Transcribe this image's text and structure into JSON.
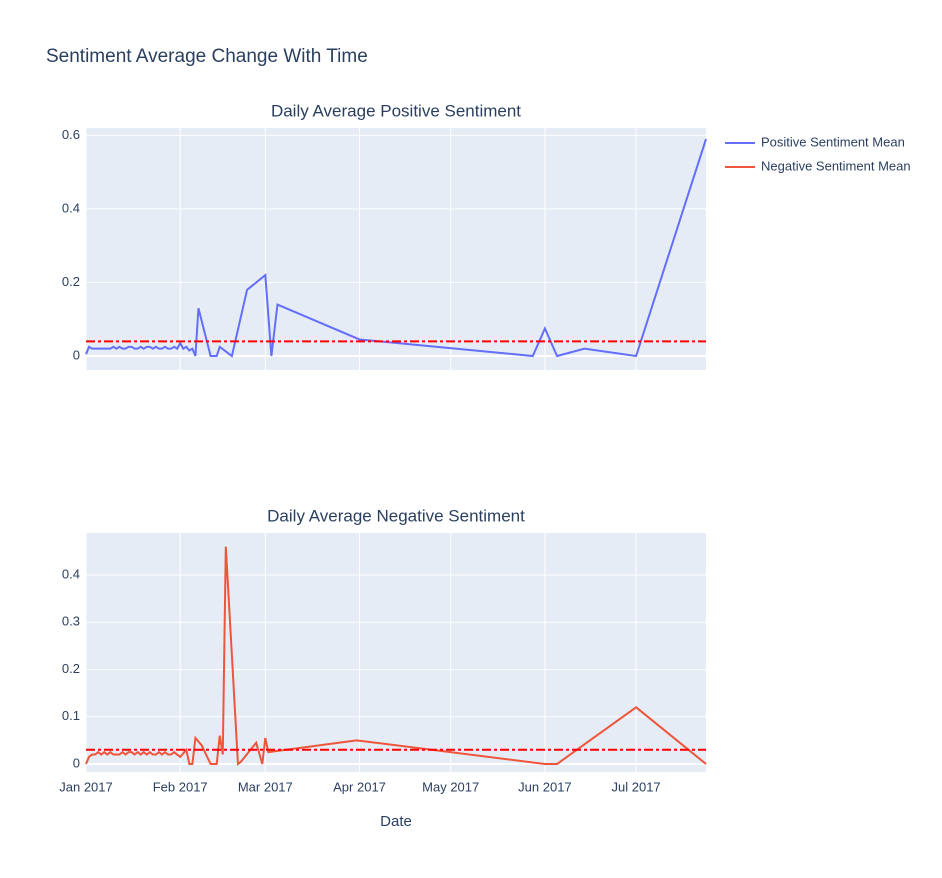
{
  "title": "Sentiment Average Change With Time",
  "chart_data": [
    {
      "type": "line",
      "title": "Daily Average Positive Sentiment",
      "x": [
        "2017-01-01",
        "2017-01-02",
        "2017-01-03",
        "2017-01-04",
        "2017-01-05",
        "2017-01-06",
        "2017-01-07",
        "2017-01-08",
        "2017-01-09",
        "2017-01-10",
        "2017-01-11",
        "2017-01-12",
        "2017-01-13",
        "2017-01-14",
        "2017-01-15",
        "2017-01-16",
        "2017-01-17",
        "2017-01-18",
        "2017-01-19",
        "2017-01-20",
        "2017-01-21",
        "2017-01-22",
        "2017-01-23",
        "2017-01-24",
        "2017-01-25",
        "2017-01-26",
        "2017-01-27",
        "2017-01-28",
        "2017-01-29",
        "2017-01-30",
        "2017-01-31",
        "2017-02-01",
        "2017-02-02",
        "2017-02-03",
        "2017-02-04",
        "2017-02-05",
        "2017-02-06",
        "2017-02-07",
        "2017-02-11",
        "2017-02-13",
        "2017-02-14",
        "2017-02-18",
        "2017-02-23",
        "2017-03-01",
        "2017-03-03",
        "2017-03-05",
        "2017-04-01",
        "2017-05-28",
        "2017-06-01",
        "2017-06-05",
        "2017-06-14",
        "2017-07-01",
        "2017-07-24"
      ],
      "series": [
        {
          "name": "Positive Sentiment Mean",
          "color": "#636efa",
          "values": [
            0.005,
            0.025,
            0.02,
            0.02,
            0.02,
            0.02,
            0.02,
            0.02,
            0.02,
            0.025,
            0.02,
            0.025,
            0.02,
            0.02,
            0.025,
            0.025,
            0.02,
            0.02,
            0.025,
            0.02,
            0.025,
            0.025,
            0.02,
            0.025,
            0.02,
            0.02,
            0.025,
            0.02,
            0.02,
            0.025,
            0.02,
            0.035,
            0.02,
            0.025,
            0.015,
            0.02,
            0,
            0.13,
            0,
            0,
            0.025,
            0,
            0.18,
            0.22,
            0,
            0.14,
            0.045,
            0,
            0.075,
            0,
            0.02,
            0,
            0.59
          ]
        }
      ],
      "hline": {
        "value": 0.04,
        "color": "#ff0000"
      },
      "xlim": [
        "2017-01-01",
        "2017-07-24"
      ],
      "xticks": [
        "2017-01-01",
        "2017-02-01",
        "2017-03-01",
        "2017-04-01",
        "2017-05-01",
        "2017-06-01",
        "2017-07-01"
      ],
      "ylim": [
        -0.038,
        0.62
      ],
      "yticks": [
        0,
        0.2,
        0.4,
        0.6
      ],
      "grid": true
    },
    {
      "type": "line",
      "title": "Daily Average Negative Sentiment",
      "xlabel": "Date",
      "x": [
        "2017-01-01",
        "2017-01-02",
        "2017-01-03",
        "2017-01-04",
        "2017-01-05",
        "2017-01-06",
        "2017-01-07",
        "2017-01-08",
        "2017-01-09",
        "2017-01-10",
        "2017-01-11",
        "2017-01-12",
        "2017-01-13",
        "2017-01-14",
        "2017-01-15",
        "2017-01-16",
        "2017-01-17",
        "2017-01-18",
        "2017-01-19",
        "2017-01-20",
        "2017-01-21",
        "2017-01-22",
        "2017-01-23",
        "2017-01-24",
        "2017-01-25",
        "2017-01-26",
        "2017-01-27",
        "2017-01-28",
        "2017-01-29",
        "2017-01-30",
        "2017-01-31",
        "2017-02-01",
        "2017-02-03",
        "2017-02-04",
        "2017-02-05",
        "2017-02-06",
        "2017-02-08",
        "2017-02-11",
        "2017-02-13",
        "2017-02-14",
        "2017-02-15",
        "2017-02-16",
        "2017-02-20",
        "2017-02-21",
        "2017-02-26",
        "2017-02-28",
        "2017-03-01",
        "2017-03-02",
        "2017-03-31",
        "2017-06-01",
        "2017-06-05",
        "2017-07-01",
        "2017-07-24"
      ],
      "series": [
        {
          "name": "Negative Sentiment Mean",
          "color": "#ef553b",
          "values": [
            0,
            0.015,
            0.02,
            0.02,
            0.025,
            0.02,
            0.025,
            0.02,
            0.025,
            0.02,
            0.02,
            0.02,
            0.025,
            0.02,
            0.025,
            0.025,
            0.02,
            0.025,
            0.02,
            0.025,
            0.02,
            0.025,
            0.02,
            0.02,
            0.025,
            0.02,
            0.025,
            0.02,
            0.02,
            0.025,
            0.02,
            0.015,
            0.03,
            0,
            0,
            0.055,
            0.04,
            0,
            0,
            0.06,
            0.02,
            0.46,
            0,
            0.005,
            0.045,
            0,
            0.055,
            0.025,
            0.05,
            0,
            0,
            0.12,
            0
          ]
        }
      ],
      "hline": {
        "value": 0.03,
        "color": "#ff0000"
      },
      "xlim": [
        "2017-01-01",
        "2017-07-24"
      ],
      "xticks": [
        {
          "value": "2017-01-01",
          "label": "Jan 2017"
        },
        {
          "value": "2017-02-01",
          "label": "Feb 2017"
        },
        {
          "value": "2017-03-01",
          "label": "Mar 2017"
        },
        {
          "value": "2017-04-01",
          "label": "Apr 2017"
        },
        {
          "value": "2017-05-01",
          "label": "May 2017"
        },
        {
          "value": "2017-06-01",
          "label": "Jun 2017"
        },
        {
          "value": "2017-07-01",
          "label": "Jul 2017"
        }
      ],
      "ylim": [
        -0.017,
        0.489
      ],
      "yticks": [
        0,
        0.1,
        0.2,
        0.3,
        0.4
      ],
      "grid": true
    }
  ]
}
